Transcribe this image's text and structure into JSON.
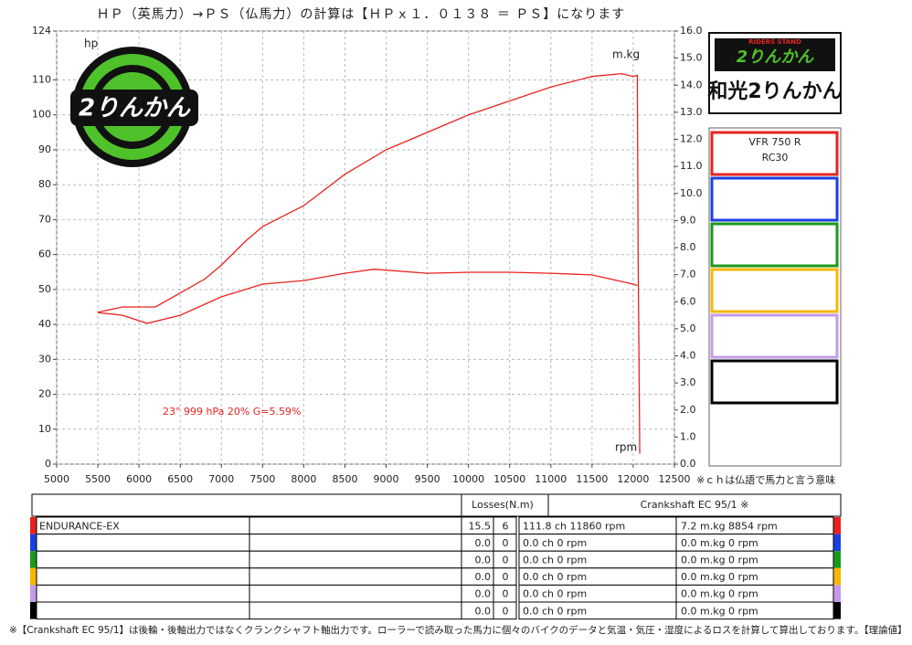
{
  "chart_data": {
    "type": "line",
    "title": "ＨＰ（英馬力）→ＰＳ（仏馬力）の計算は【ＨＰｘ１．０１３８ ＝ ＰＳ】になります",
    "y_label": "hp",
    "y2_label": "m.kg",
    "x_label": "rpm",
    "annotation": "23°  999 hPa  20%    G=5.59%",
    "note": "※ｃｈは仏語で馬力と言う意味",
    "xlim": [
      5000,
      12500
    ],
    "xticks": [
      5000,
      5500,
      6000,
      6500,
      7000,
      7500,
      8000,
      8500,
      9000,
      9500,
      10000,
      10500,
      11000,
      11500,
      12000,
      12500
    ],
    "ylim": [
      0,
      124
    ],
    "yticks": [
      0,
      10,
      20,
      30,
      40,
      50,
      60,
      70,
      80,
      90,
      100,
      110,
      124
    ],
    "y2lim": [
      0,
      16
    ],
    "y2ticks": [
      {
        "value": 0,
        "label": "0.0"
      },
      {
        "value": 1,
        "label": "1.0"
      },
      {
        "value": 2,
        "label": "2.0"
      },
      {
        "value": 3,
        "label": "3.0"
      },
      {
        "value": 4,
        "label": "4.0"
      },
      {
        "value": 5,
        "label": "5.0"
      },
      {
        "value": 6,
        "label": "6.0"
      },
      {
        "value": 7,
        "label": "7.0"
      },
      {
        "value": 8,
        "label": "8.0"
      },
      {
        "value": 9,
        "label": "9.0"
      },
      {
        "value": 10,
        "label": "10.0"
      },
      {
        "value": 11,
        "label": "11.0"
      },
      {
        "value": 12,
        "label": "12.0"
      },
      {
        "value": 13,
        "label": "13.0"
      },
      {
        "value": 14,
        "label": "14.0"
      },
      {
        "value": 15,
        "label": "15.0"
      },
      {
        "value": 16,
        "label": "16.0"
      }
    ],
    "grid": true,
    "series": [
      {
        "color": "#e8231f",
        "x": [
          5500,
          5800,
          6000,
          6200,
          6500,
          6800,
          7000,
          7300,
          7500,
          8000,
          8500,
          9000,
          9500,
          10000,
          10500,
          11000,
          11500,
          11860,
          12000,
          12050,
          12060,
          12080
        ],
        "values": [
          43.5,
          45,
          45,
          45,
          49,
          53,
          57,
          64,
          68,
          74,
          83,
          90,
          95,
          100,
          104,
          108,
          111,
          111.8,
          111,
          111.3,
          60,
          3
        ]
      },
      {
        "color": "#e8231f",
        "axis": "y2",
        "x": [
          5500,
          5800,
          6100,
          6500,
          7000,
          7500,
          8000,
          8500,
          8854,
          9500,
          10000,
          10500,
          11000,
          11500,
          12000,
          12050
        ],
        "values": [
          5.6,
          5.5,
          5.2,
          5.5,
          6.18,
          6.65,
          6.78,
          7.05,
          7.2,
          7.05,
          7.09,
          7.09,
          7.05,
          6.99,
          6.65,
          6.6
        ]
      }
    ]
  },
  "logos": {
    "left": "2りんかん",
    "right_top": "2りんかん",
    "right_main": "和光2りんかん",
    "right_small": "RIDERS STAND"
  },
  "legend_panel": {
    "boxes": [
      {
        "color": "#e8231f",
        "lines": [
          "VFR 750 R",
          "RC30"
        ]
      },
      {
        "color": "#1a3fe0"
      },
      {
        "color": "#1a9a1a"
      },
      {
        "color": "#f5b800"
      },
      {
        "color": "#c39be8"
      },
      {
        "color": "#000000"
      }
    ]
  },
  "table": {
    "losses_header": "Losses(N.m)",
    "output_header": "Crankshaft EC 95/1 ※",
    "rows": [
      {
        "color": "#e8231f",
        "name": "ENDURANCE-EX",
        "loss1": "15.5",
        "loss2": "6",
        "power": "111.8 ch 11860 rpm",
        "torque": "7.2 m.kg 8854 rpm"
      },
      {
        "color": "#1a3fe0",
        "loss1": "0.0",
        "loss2": "0",
        "power": "0.0 ch 0 rpm",
        "torque": "0.0 m.kg 0 rpm"
      },
      {
        "color": "#1a9a1a",
        "loss1": "0.0",
        "loss2": "0",
        "power": "0.0 ch 0 rpm",
        "torque": "0.0 m.kg 0 rpm"
      },
      {
        "color": "#f5b800",
        "loss1": "0.0",
        "loss2": "0",
        "power": "0.0 ch 0 rpm",
        "torque": "0.0 m.kg 0 rpm"
      },
      {
        "color": "#c39be8",
        "loss1": "0.0",
        "loss2": "0",
        "power": "0.0 ch 0 rpm",
        "torque": "0.0 m.kg 0 rpm"
      },
      {
        "color": "#000000",
        "loss1": "0.0",
        "loss2": "0",
        "power": "0.0 ch 0 rpm",
        "torque": "0.0 m.kg 0 rpm"
      }
    ]
  },
  "footer": "※【Crankshaft EC 95/1】は後輪・後軸出力ではなくクランクシャフト軸出力です。ローラーで読み取った馬力に個々のバイクのデータと気温・気圧・湿度によるロスを計算して算出しております。【理論値】"
}
